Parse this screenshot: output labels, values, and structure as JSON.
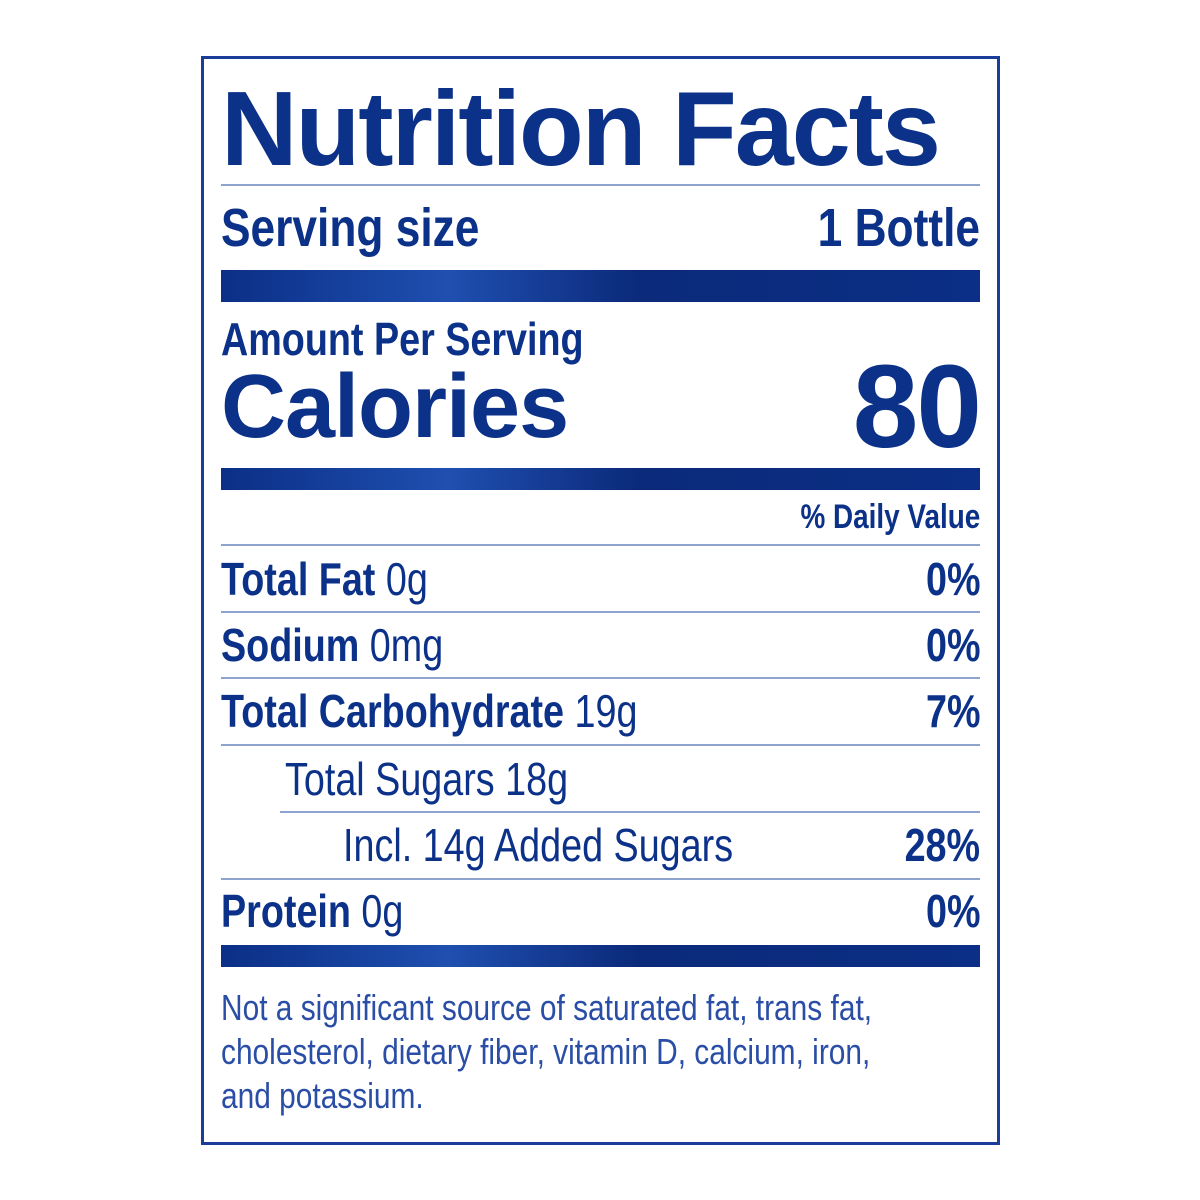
{
  "title": "Nutrition Facts",
  "serving": {
    "label": "Serving size",
    "value": "1 Bottle"
  },
  "amount_per_serving": "Amount Per Serving",
  "calories": {
    "label": "Calories",
    "value": "80"
  },
  "daily_value_header": "% Daily Value",
  "nutrients": [
    {
      "name": "Total Fat",
      "amount": "0g",
      "dv": "0%"
    },
    {
      "name": "Sodium",
      "amount": "0mg",
      "dv": "0%"
    },
    {
      "name": "Total Carbohydrate",
      "amount": "19g",
      "dv": "7%"
    },
    {
      "name": "Total Sugars 18g"
    },
    {
      "name": "Incl. 14g Added Sugars",
      "dv": "28%"
    },
    {
      "name": "Protein",
      "amount": "0g",
      "dv": "0%"
    }
  ],
  "footnote": "Not a significant source of saturated fat, trans fat, cholesterol, dietary fiber, vitamin D, calcium, iron, and potassium.",
  "colors": {
    "text": "#0b3189",
    "border": "#1a3d9a"
  }
}
